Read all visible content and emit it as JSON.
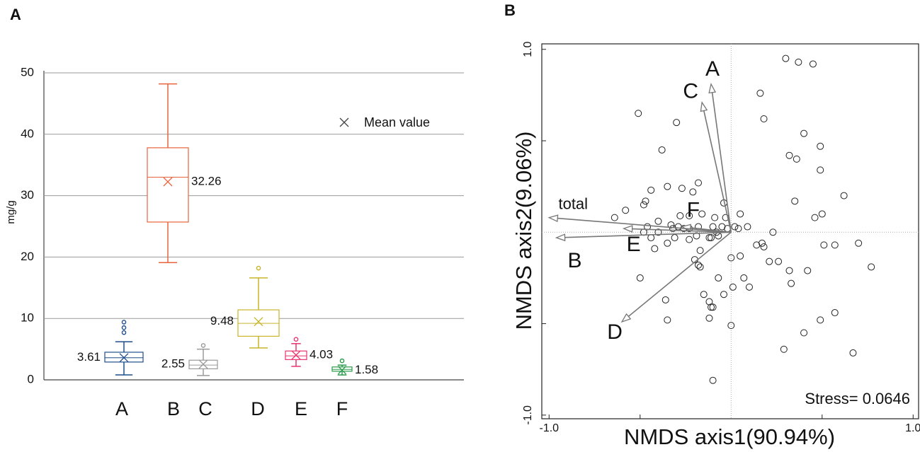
{
  "chart_data": [
    {
      "type": "box",
      "panel_label": "A",
      "ylabel": "mg/g",
      "mean_label": "Mean value",
      "categories": [
        "A",
        "B",
        "C",
        "D",
        "E",
        "F"
      ],
      "colors": [
        "#1f4e8c",
        "#e8643c",
        "#9a9a9a",
        "#c8b42a",
        "#e8336e",
        "#2a9a4a"
      ],
      "boxes": [
        {
          "min": 0.8,
          "q1": 2.9,
          "median": 3.6,
          "q3": 4.5,
          "max": 6.2,
          "mean": 3.61,
          "outliers": [
            7.7,
            8.5,
            9.4
          ]
        },
        {
          "min": 19.1,
          "q1": 25.7,
          "median": 33.0,
          "q3": 37.8,
          "max": 48.2,
          "mean": 32.26,
          "outliers": []
        },
        {
          "min": 0.7,
          "q1": 1.8,
          "median": 2.4,
          "q3": 3.2,
          "max": 5.0,
          "mean": 2.55,
          "outliers": [
            5.6
          ]
        },
        {
          "min": 5.2,
          "q1": 7.1,
          "median": 9.2,
          "q3": 11.4,
          "max": 16.6,
          "mean": 9.48,
          "outliers": [
            18.2
          ]
        },
        {
          "min": 2.2,
          "q1": 3.3,
          "median": 3.9,
          "q3": 4.7,
          "max": 5.9,
          "mean": 4.03,
          "outliers": [
            6.6
          ]
        },
        {
          "min": 0.8,
          "q1": 1.4,
          "median": 1.7,
          "q3": 2.1,
          "max": 2.4,
          "mean": 1.58,
          "outliers": [
            3.1
          ]
        }
      ],
      "ylim": [
        0,
        50
      ],
      "yticks": [
        0,
        10,
        20,
        30,
        40,
        50
      ],
      "grid": true
    },
    {
      "type": "scatter",
      "panel_label": "B",
      "xlabel": "NMDS axis1(90.94%)",
      "ylabel": "NMDS axis2(9.06%)",
      "annotation": "Stress= 0.0646",
      "x": [
        0.3,
        0.37,
        0.45,
        0.16,
        -0.51,
        -0.3,
        0.18,
        0.4,
        -0.38,
        0.49,
        0.32,
        0.36,
        0.49,
        -0.18,
        -0.35,
        -0.27,
        -0.44,
        -0.21,
        0.62,
        0.35,
        -0.48,
        -0.04,
        -0.47,
        -0.58,
        -0.64,
        -0.28,
        -0.16,
        0.5,
        0.46,
        0.05,
        -0.23,
        -0.03,
        -0.09,
        -0.4,
        -0.33,
        -0.29,
        -0.46,
        0.09,
        0.02,
        0.04,
        -0.05,
        -0.48,
        -0.23,
        -0.18,
        -0.1,
        -0.08,
        -0.02,
        -0.4,
        -0.32,
        -0.26,
        0.23,
        -0.44,
        -0.31,
        -0.19,
        -0.12,
        -0.11,
        -0.07,
        -0.35,
        -0.42,
        -0.23,
        0.14,
        0.18,
        0.51,
        0.57,
        0.7,
        0.17,
        -0.17,
        0.05,
        0.21,
        0.26,
        0,
        -0.2,
        0.32,
        0.77,
        -0.18,
        -0.17,
        0.42,
        -0.5,
        -0.07,
        0.07,
        0.33,
        0.01,
        0.1,
        -0.04,
        -0.15,
        -0.12,
        -0.36,
        -0.11,
        -0.1,
        0.57,
        -0.12,
        -0.35,
        0,
        0.49,
        0.4,
        0.29,
        0.67,
        -0.1
      ],
      "y": [
        0.95,
        0.93,
        0.92,
        0.76,
        0.65,
        0.6,
        0.62,
        0.54,
        0.45,
        0.47,
        0.42,
        0.4,
        0.34,
        0.27,
        0.25,
        0.24,
        0.23,
        0.22,
        0.2,
        0.17,
        0.15,
        0.16,
        0.17,
        0.12,
        0.08,
        0.09,
        0.1,
        0.1,
        0.08,
        0.1,
        0.09,
        0.08,
        0.08,
        0.06,
        0.04,
        0.03,
        0.03,
        0.03,
        0.03,
        0.02,
        0.03,
        0,
        0.02,
        0.03,
        0.03,
        0,
        0.02,
        0,
        0.02,
        0.02,
        0,
        -0.03,
        -0.03,
        -0.02,
        -0.03,
        -0.03,
        -0.02,
        -0.06,
        -0.09,
        -0.04,
        -0.07,
        -0.08,
        -0.07,
        -0.07,
        -0.06,
        -0.06,
        -0.1,
        -0.13,
        -0.16,
        -0.16,
        -0.14,
        -0.15,
        -0.21,
        -0.19,
        -0.18,
        -0.19,
        -0.21,
        -0.25,
        -0.25,
        -0.25,
        -0.28,
        -0.3,
        -0.3,
        -0.34,
        -0.34,
        -0.38,
        -0.37,
        -0.41,
        -0.41,
        -0.44,
        -0.47,
        -0.48,
        -0.51,
        -0.48,
        -0.55,
        -0.64,
        -0.66,
        -0.81
      ],
      "vectors": [
        {
          "label": "A",
          "x": -0.11,
          "y": 0.81
        },
        {
          "label": "C",
          "x": -0.16,
          "y": 0.71
        },
        {
          "label": "F",
          "x": -0.27,
          "y": 0.03
        },
        {
          "label": "E",
          "x": -0.59,
          "y": 0.02
        },
        {
          "label": "total",
          "x": -1.0,
          "y": 0.08
        },
        {
          "label": "B",
          "x": -0.96,
          "y": -0.03
        },
        {
          "label": "D",
          "x": -0.6,
          "y": -0.49
        }
      ],
      "xlim": [
        -1.04,
        1.03
      ],
      "ylim": [
        -1.02,
        1.03
      ],
      "xticks": [
        {
          "value": -1,
          "label": "-1.0"
        },
        {
          "value": 1,
          "label": "1.0"
        }
      ],
      "yticks": [
        {
          "value": -1,
          "label": "-1.0"
        },
        {
          "value": 1,
          "label": "1.0"
        }
      ],
      "xminor_ticks": [
        -0.5,
        0.5
      ],
      "yminor_ticks": [
        -0.5,
        0.5
      ]
    }
  ]
}
